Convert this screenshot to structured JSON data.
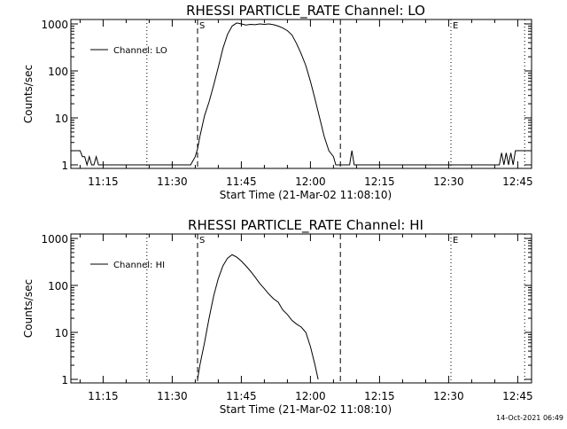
{
  "chart_data": [
    {
      "type": "line",
      "title": "RHESSI PARTICLE_RATE Channel: LO",
      "xlabel": "Start Time (21-Mar-02 11:08:10)",
      "ylabel": "Counts/sec",
      "yscale": "log",
      "ylim": [
        1,
        1000
      ],
      "xlim": [
        "11:08",
        "12:48"
      ],
      "x_ticks": [
        "11:15",
        "11:30",
        "11:45",
        "12:00",
        "12:15",
        "12:30",
        "12:45"
      ],
      "y_ticks": [
        "1",
        "10",
        "100",
        "1000"
      ],
      "grid": false,
      "legend_position": "top-left",
      "series": [
        {
          "name": "Channel: LO",
          "points": [
            [
              "11:08:10",
              2
            ],
            [
              "11:09:00",
              2
            ],
            [
              "11:09:30",
              2
            ],
            [
              "11:10:00",
              2
            ],
            [
              "11:10:30",
              1.5
            ],
            [
              "11:11:00",
              1.5
            ],
            [
              "11:11:30",
              1
            ],
            [
              "11:12:00",
              1.5
            ],
            [
              "11:12:30",
              1
            ],
            [
              "11:13:00",
              1
            ],
            [
              "11:13:30",
              1.5
            ],
            [
              "11:14:00",
              1
            ],
            [
              "11:34:00",
              1
            ],
            [
              "11:35:00",
              1.5
            ],
            [
              "11:35:30",
              2.2
            ],
            [
              "11:36:00",
              4
            ],
            [
              "11:37:00",
              11
            ],
            [
              "11:38:00",
              22
            ],
            [
              "11:39:00",
              50
            ],
            [
              "11:40:00",
              120
            ],
            [
              "11:41:00",
              300
            ],
            [
              "11:42:00",
              600
            ],
            [
              "11:43:00",
              900
            ],
            [
              "11:44:00",
              1050
            ],
            [
              "11:45:00",
              1000
            ],
            [
              "11:46:00",
              950
            ],
            [
              "11:47:00",
              980
            ],
            [
              "11:48:00",
              960
            ],
            [
              "11:49:00",
              1000
            ],
            [
              "11:50:00",
              980
            ],
            [
              "11:51:00",
              1000
            ],
            [
              "11:52:00",
              960
            ],
            [
              "11:53:00",
              900
            ],
            [
              "11:54:00",
              820
            ],
            [
              "11:55:00",
              720
            ],
            [
              "11:56:00",
              580
            ],
            [
              "11:57:00",
              380
            ],
            [
              "11:58:00",
              230
            ],
            [
              "11:59:00",
              130
            ],
            [
              "12:00:00",
              60
            ],
            [
              "12:01:00",
              25
            ],
            [
              "12:02:00",
              10
            ],
            [
              "12:03:00",
              4
            ],
            [
              "12:04:00",
              2
            ],
            [
              "12:05:00",
              1.5
            ],
            [
              "12:05:30",
              1
            ],
            [
              "12:08:30",
              1
            ],
            [
              "12:09:00",
              2
            ],
            [
              "12:09:30",
              1
            ],
            [
              "12:41:00",
              1
            ],
            [
              "12:41:30",
              1.8
            ],
            [
              "12:42:00",
              1
            ],
            [
              "12:42:30",
              1.8
            ],
            [
              "12:43:00",
              1
            ],
            [
              "12:43:30",
              1.8
            ],
            [
              "12:44:00",
              1
            ],
            [
              "12:44:30",
              2
            ],
            [
              "12:48:00",
              2
            ]
          ]
        }
      ],
      "vlines": [
        {
          "time": "11:24:30",
          "style": "dotted",
          "label": ""
        },
        {
          "time": "11:35:30",
          "style": "dashed",
          "label": "S"
        },
        {
          "time": "12:06:30",
          "style": "dashed",
          "label": ""
        },
        {
          "time": "12:30:30",
          "style": "dotted",
          "label": "E"
        },
        {
          "time": "12:46:30",
          "style": "dotted",
          "label": ""
        }
      ]
    },
    {
      "type": "line",
      "title": "RHESSI PARTICLE_RATE Channel: HI",
      "xlabel": "Start Time (21-Mar-02 11:08:10)",
      "ylabel": "Counts/sec",
      "yscale": "log",
      "ylim": [
        1,
        1000
      ],
      "xlim": [
        "11:08",
        "12:48"
      ],
      "x_ticks": [
        "11:15",
        "11:30",
        "11:45",
        "12:00",
        "12:15",
        "12:30",
        "12:45"
      ],
      "y_ticks": [
        "1",
        "10",
        "100",
        "1000"
      ],
      "grid": false,
      "legend_position": "top-left",
      "series": [
        {
          "name": "Channel: HI",
          "points": [
            [
              "11:35:30",
              1
            ],
            [
              "11:36:00",
              2
            ],
            [
              "11:37:00",
              6
            ],
            [
              "11:38:00",
              20
            ],
            [
              "11:39:00",
              60
            ],
            [
              "11:40:00",
              140
            ],
            [
              "11:41:00",
              260
            ],
            [
              "11:42:00",
              380
            ],
            [
              "11:43:00",
              450
            ],
            [
              "11:44:00",
              400
            ],
            [
              "11:45:00",
              330
            ],
            [
              "11:46:00",
              260
            ],
            [
              "11:47:00",
              200
            ],
            [
              "11:48:00",
              150
            ],
            [
              "11:49:00",
              110
            ],
            [
              "11:50:00",
              85
            ],
            [
              "11:51:00",
              65
            ],
            [
              "11:52:00",
              52
            ],
            [
              "11:53:00",
              44
            ],
            [
              "11:54:00",
              30
            ],
            [
              "11:55:00",
              24
            ],
            [
              "11:56:00",
              18
            ],
            [
              "11:57:00",
              15
            ],
            [
              "11:58:00",
              13
            ],
            [
              "11:59:00",
              10
            ],
            [
              "12:00:00",
              5
            ],
            [
              "12:01:00",
              2
            ],
            [
              "12:01:40",
              1
            ]
          ]
        }
      ],
      "vlines": [
        {
          "time": "11:24:30",
          "style": "dotted",
          "label": ""
        },
        {
          "time": "11:35:30",
          "style": "dashed",
          "label": "S"
        },
        {
          "time": "12:06:30",
          "style": "dashed",
          "label": ""
        },
        {
          "time": "12:30:30",
          "style": "dotted",
          "label": "E"
        },
        {
          "time": "12:46:30",
          "style": "dotted",
          "label": ""
        }
      ]
    }
  ],
  "footer_timestamp": "14-Oct-2021 06:49"
}
